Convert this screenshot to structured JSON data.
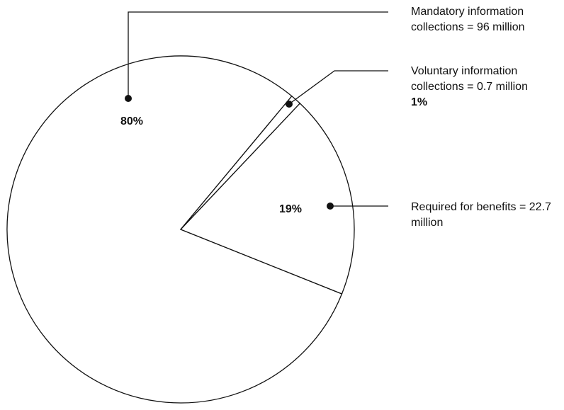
{
  "chart_data": {
    "type": "pie",
    "categories": [
      "Mandatory information collections = 96 million",
      "Voluntary information collections = 0.7 million",
      "Required for benefits = 22.7 million"
    ],
    "values": [
      80,
      1,
      19
    ],
    "value_labels": [
      "80%",
      "1%",
      "19%"
    ],
    "colors": [
      "#ffffff",
      "#ffffff",
      "#ffffff"
    ]
  }
}
